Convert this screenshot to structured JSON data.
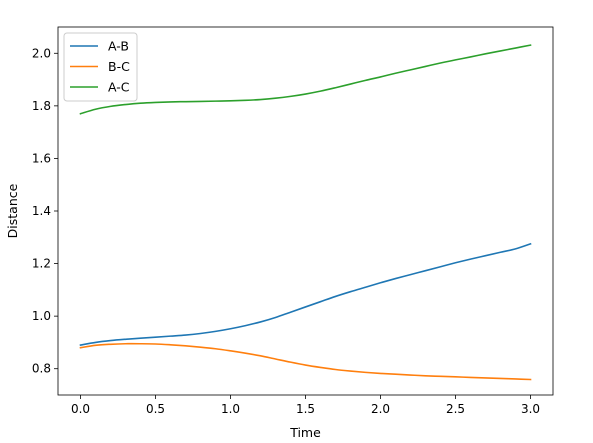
{
  "chart_data": {
    "type": "line",
    "title": "",
    "xlabel": "Time",
    "ylabel": "Distance",
    "xlim": [
      -0.15,
      3.15
    ],
    "ylim": [
      0.7,
      2.1
    ],
    "xticks": [
      0.0,
      0.5,
      1.0,
      1.5,
      2.0,
      2.5,
      3.0
    ],
    "xtick_labels": [
      "0.0",
      "0.5",
      "1.0",
      "1.5",
      "2.0",
      "2.5",
      "3.0"
    ],
    "yticks": [
      0.8,
      1.0,
      1.2,
      1.4,
      1.6,
      1.8,
      2.0
    ],
    "ytick_labels": [
      "0.8",
      "1.0",
      "1.2",
      "1.4",
      "1.6",
      "1.8",
      "2.0"
    ],
    "grid": false,
    "legend": "top-left",
    "x": [
      0.0,
      0.1,
      0.2,
      0.3,
      0.4,
      0.5,
      0.6,
      0.7,
      0.8,
      0.9,
      1.0,
      1.1,
      1.2,
      1.3,
      1.4,
      1.5,
      1.6,
      1.7,
      1.8,
      1.9,
      2.0,
      2.1,
      2.2,
      2.3,
      2.4,
      2.5,
      2.6,
      2.7,
      2.8,
      2.9,
      3.0
    ],
    "series": [
      {
        "name": "A-B",
        "color": "#1f77b4",
        "values": [
          0.89,
          0.9,
          0.907,
          0.912,
          0.916,
          0.92,
          0.924,
          0.928,
          0.934,
          0.942,
          0.952,
          0.964,
          0.978,
          0.995,
          1.015,
          1.035,
          1.055,
          1.075,
          1.093,
          1.11,
          1.127,
          1.143,
          1.158,
          1.173,
          1.188,
          1.203,
          1.217,
          1.23,
          1.243,
          1.256,
          1.275
        ]
      },
      {
        "name": "B-C",
        "color": "#ff7f0e",
        "values": [
          0.88,
          0.889,
          0.893,
          0.895,
          0.895,
          0.894,
          0.891,
          0.887,
          0.882,
          0.876,
          0.868,
          0.859,
          0.849,
          0.837,
          0.825,
          0.814,
          0.805,
          0.797,
          0.791,
          0.786,
          0.782,
          0.779,
          0.776,
          0.773,
          0.771,
          0.769,
          0.767,
          0.765,
          0.763,
          0.761,
          0.759
        ]
      },
      {
        "name": "A-C",
        "color": "#2ca02c",
        "values": [
          1.77,
          1.787,
          1.798,
          1.805,
          1.81,
          1.813,
          1.815,
          1.816,
          1.817,
          1.818,
          1.819,
          1.821,
          1.824,
          1.829,
          1.836,
          1.845,
          1.856,
          1.869,
          1.883,
          1.897,
          1.91,
          1.924,
          1.937,
          1.95,
          1.963,
          1.975,
          1.986,
          1.998,
          2.009,
          2.02,
          2.031
        ]
      }
    ]
  }
}
